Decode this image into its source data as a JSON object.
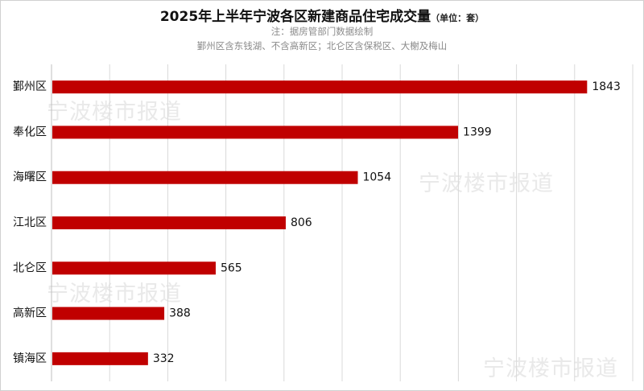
{
  "chart_data": {
    "type": "bar",
    "orientation": "horizontal",
    "title": "2025年上半年宁波各区新建商品住宅成交量",
    "unit_label": "（单位：套）",
    "notes": [
      "注：据房管部门数据绘制",
      "鄞州区含东钱湖、不含高新区；北仑区含保税区、大榭及梅山"
    ],
    "categories": [
      "鄞州区",
      "奉化区",
      "海曙区",
      "江北区",
      "北仑区",
      "高新区",
      "镇海区"
    ],
    "values": [
      1843,
      1399,
      1054,
      806,
      565,
      388,
      332
    ],
    "xlim": [
      0,
      2000
    ],
    "grid": true,
    "bar_color": "#c00000",
    "grid_color": "#d9d9d9"
  },
  "watermark_text": "宁波楼市报道"
}
